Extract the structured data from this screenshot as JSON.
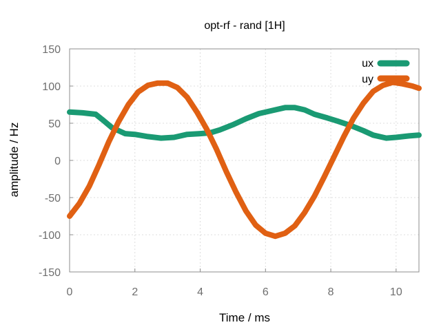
{
  "chart_data": {
    "type": "line",
    "title": "opt-rf - rand [1H]",
    "xlabel": "Time / ms",
    "ylabel": "amplitude / Hz",
    "xlim": [
      0,
      10.7
    ],
    "ylim": [
      -150,
      150
    ],
    "x_ticks": [
      0,
      2,
      4,
      6,
      8,
      10
    ],
    "y_ticks": [
      -150,
      -100,
      -50,
      0,
      50,
      100,
      150
    ],
    "x_tick_labels": [
      "0",
      "2",
      "4",
      "6",
      "8",
      "10"
    ],
    "y_tick_labels": [
      "-150",
      "-100",
      "-50",
      "0",
      "50",
      "100",
      "150"
    ],
    "grid": true,
    "legend_position": "top-right",
    "series": [
      {
        "name": "ux",
        "color": "#1a9a73",
        "x": [
          0,
          0.4,
          0.8,
          1.0,
          1.3,
          1.7,
          2.0,
          2.4,
          2.8,
          3.2,
          3.6,
          4.0,
          4.3,
          4.6,
          5.0,
          5.4,
          5.8,
          6.2,
          6.6,
          6.9,
          7.2,
          7.5,
          7.9,
          8.2,
          8.6,
          9.0,
          9.3,
          9.7,
          10.0,
          10.4,
          10.7
        ],
        "y": [
          65,
          64,
          62,
          55,
          44,
          36,
          35,
          32,
          30,
          31,
          35,
          36,
          37,
          41,
          48,
          56,
          63,
          67,
          71,
          71,
          68,
          62,
          57,
          53,
          47,
          40,
          34,
          30,
          31,
          33,
          34
        ]
      },
      {
        "name": "uy",
        "color": "#e06013",
        "x": [
          0,
          0.3,
          0.6,
          0.9,
          1.2,
          1.5,
          1.8,
          2.1,
          2.4,
          2.7,
          3.0,
          3.3,
          3.6,
          3.9,
          4.2,
          4.5,
          4.8,
          5.1,
          5.4,
          5.7,
          6.0,
          6.3,
          6.6,
          6.9,
          7.2,
          7.5,
          7.8,
          8.1,
          8.4,
          8.7,
          9.0,
          9.3,
          9.6,
          9.9,
          10.2,
          10.5,
          10.7
        ],
        "y": [
          -75,
          -58,
          -35,
          -6,
          25,
          52,
          75,
          92,
          101,
          104,
          104,
          98,
          85,
          65,
          42,
          15,
          -15,
          -43,
          -68,
          -87,
          -98,
          -102,
          -98,
          -88,
          -70,
          -48,
          -22,
          5,
          32,
          57,
          77,
          93,
          101,
          105,
          103,
          100,
          97
        ]
      }
    ]
  }
}
